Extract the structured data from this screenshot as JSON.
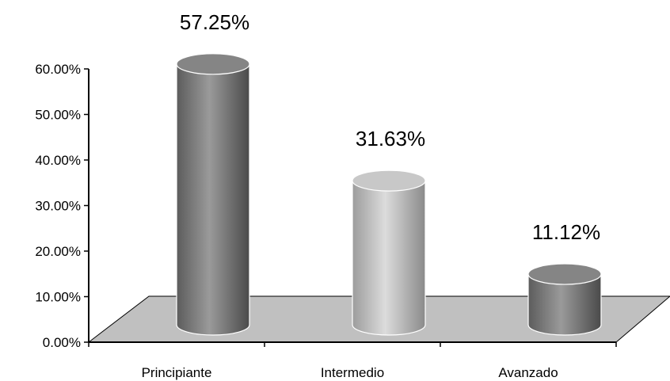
{
  "chart_data": {
    "type": "bar",
    "style": "3d-cylinder",
    "categories": [
      "Principiante",
      "Intermedio",
      "Avanzado"
    ],
    "values": [
      57.25,
      31.63,
      11.12
    ],
    "data_labels": [
      "57.25%",
      "31.63%",
      "11.12%"
    ],
    "y_ticks": [
      0,
      10,
      20,
      30,
      40,
      50,
      60
    ],
    "y_tick_labels": [
      "0.00%",
      "10.00%",
      "20.00%",
      "30.00%",
      "40.00%",
      "50.00%",
      "60.00%"
    ],
    "ylim": [
      0,
      60
    ],
    "title": "",
    "xlabel": "",
    "ylabel": "",
    "grid": false,
    "legend": "none",
    "colors": {
      "bar_dark": "#7b7b7b",
      "bar_light": "#bdbdbd",
      "floor": "#c0c0c0",
      "axis": "#000000"
    },
    "bar_color_keys": [
      "bar_dark",
      "bar_light",
      "bar_dark"
    ]
  }
}
